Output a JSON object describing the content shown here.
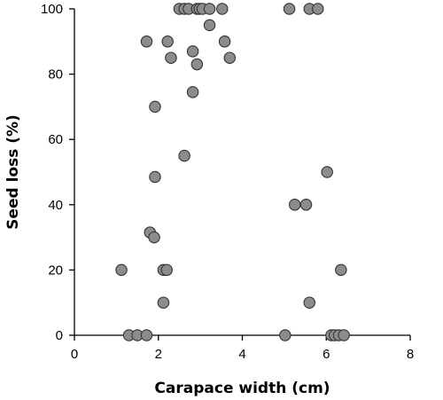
{
  "chart_data": {
    "type": "scatter",
    "xlabel": "Carapace width (cm)",
    "ylabel": "Seed loss (%)",
    "xlim": [
      0,
      8
    ],
    "ylim": [
      0,
      100
    ],
    "x_ticks": [
      0,
      2,
      4,
      6,
      8
    ],
    "y_ticks": [
      0,
      20,
      40,
      60,
      80,
      100
    ],
    "grid": false,
    "marker_color": "#8c8c8c",
    "marker_edge_color": "#333333",
    "points": [
      {
        "x": 2.5,
        "y": 100
      },
      {
        "x": 2.62,
        "y": 100
      },
      {
        "x": 2.72,
        "y": 100
      },
      {
        "x": 2.92,
        "y": 100
      },
      {
        "x": 2.98,
        "y": 100
      },
      {
        "x": 3.05,
        "y": 100
      },
      {
        "x": 3.22,
        "y": 100
      },
      {
        "x": 3.52,
        "y": 100
      },
      {
        "x": 5.12,
        "y": 100
      },
      {
        "x": 5.6,
        "y": 100
      },
      {
        "x": 5.8,
        "y": 100
      },
      {
        "x": 3.22,
        "y": 95
      },
      {
        "x": 1.72,
        "y": 90
      },
      {
        "x": 2.22,
        "y": 90
      },
      {
        "x": 3.58,
        "y": 90
      },
      {
        "x": 2.82,
        "y": 87
      },
      {
        "x": 2.3,
        "y": 85
      },
      {
        "x": 3.7,
        "y": 85
      },
      {
        "x": 2.92,
        "y": 83
      },
      {
        "x": 2.82,
        "y": 74.5
      },
      {
        "x": 1.92,
        "y": 70
      },
      {
        "x": 2.62,
        "y": 55
      },
      {
        "x": 6.02,
        "y": 50
      },
      {
        "x": 1.92,
        "y": 48.5
      },
      {
        "x": 5.25,
        "y": 40
      },
      {
        "x": 5.52,
        "y": 40
      },
      {
        "x": 1.8,
        "y": 31.5
      },
      {
        "x": 1.9,
        "y": 30
      },
      {
        "x": 1.12,
        "y": 20
      },
      {
        "x": 2.12,
        "y": 20
      },
      {
        "x": 2.2,
        "y": 20
      },
      {
        "x": 6.35,
        "y": 20
      },
      {
        "x": 2.12,
        "y": 10
      },
      {
        "x": 5.6,
        "y": 10
      },
      {
        "x": 1.3,
        "y": 0
      },
      {
        "x": 1.5,
        "y": 0
      },
      {
        "x": 1.72,
        "y": 0
      },
      {
        "x": 5.02,
        "y": 0
      },
      {
        "x": 6.12,
        "y": 0
      },
      {
        "x": 6.2,
        "y": 0
      },
      {
        "x": 6.3,
        "y": 0
      },
      {
        "x": 6.42,
        "y": 0
      }
    ]
  }
}
